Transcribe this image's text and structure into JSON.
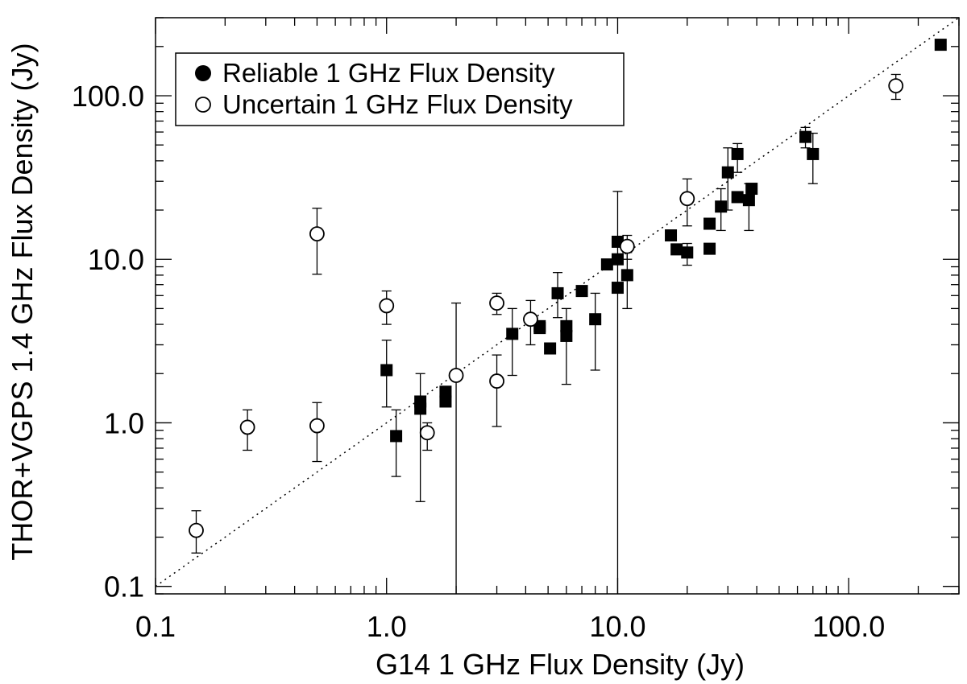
{
  "chart_data": {
    "type": "scatter",
    "xlabel": "G14 1 GHz Flux Density (Jy)",
    "ylabel": "THOR+VGPS 1.4 GHz Flux Density (Jy)",
    "x_scale": "log",
    "y_scale": "log",
    "xlim": [
      0.1,
      300
    ],
    "ylim": [
      0.09,
      300
    ],
    "x_ticks": [
      {
        "value": 0.1,
        "label": "0.1"
      },
      {
        "value": 1,
        "label": "1.0"
      },
      {
        "value": 10,
        "label": "10.0"
      },
      {
        "value": 100,
        "label": "100.0"
      }
    ],
    "y_ticks": [
      {
        "value": 0.1,
        "label": "0.1"
      },
      {
        "value": 1,
        "label": "1.0"
      },
      {
        "value": 10,
        "label": "10.0"
      },
      {
        "value": 100,
        "label": "100.0"
      }
    ],
    "reference_line": {
      "style": "dotted",
      "relation": "y = x"
    },
    "grid": false,
    "legend_position": "top-left",
    "series": [
      {
        "name": "Reliable 1 GHz Flux Density",
        "marker": "filled-square",
        "color": "#000000",
        "points": [
          {
            "x": 1.0,
            "y": 2.1,
            "lo": 1.25,
            "hi": 3.2
          },
          {
            "x": 1.1,
            "y": 0.83,
            "lo": 0.47,
            "hi": 1.2
          },
          {
            "x": 1.4,
            "y": 1.22,
            "lo": 0.33,
            "hi": 2.0
          },
          {
            "x": 1.4,
            "y": 1.35
          },
          {
            "x": 1.8,
            "y": 1.35
          },
          {
            "x": 1.8,
            "y": 1.55
          },
          {
            "x": 3.5,
            "y": 3.5,
            "lo": 1.95,
            "hi": 5.0
          },
          {
            "x": 4.6,
            "y": 3.8
          },
          {
            "x": 4.6,
            "y": 3.9
          },
          {
            "x": 5.1,
            "y": 2.85
          },
          {
            "x": 5.5,
            "y": 6.2,
            "lo": 4.4,
            "hi": 8.3
          },
          {
            "x": 6.0,
            "y": 3.4,
            "lo": 1.72,
            "hi": 5.0
          },
          {
            "x": 6.0,
            "y": 3.9
          },
          {
            "x": 7.0,
            "y": 6.4
          },
          {
            "x": 8.0,
            "y": 4.3,
            "lo": 2.1,
            "hi": 6.2
          },
          {
            "x": 9.0,
            "y": 9.3
          },
          {
            "x": 10.0,
            "y": 6.7,
            "lo": 0.05,
            "hi": 26
          },
          {
            "x": 10.0,
            "y": 10.0
          },
          {
            "x": 10.0,
            "y": 12.8
          },
          {
            "x": 11.0,
            "y": 8.0,
            "lo": 5.0,
            "hi": 11.0
          },
          {
            "x": 17.0,
            "y": 14.0
          },
          {
            "x": 18.0,
            "y": 11.5
          },
          {
            "x": 20.0,
            "y": 11.0,
            "lo": 9.2,
            "hi": 12.5
          },
          {
            "x": 25.0,
            "y": 11.6
          },
          {
            "x": 25.0,
            "y": 16.5
          },
          {
            "x": 28.0,
            "y": 21.0,
            "lo": 15.0,
            "hi": 27.0
          },
          {
            "x": 30.0,
            "y": 34.0,
            "lo": 20.0,
            "hi": 48.0
          },
          {
            "x": 33.0,
            "y": 24.0
          },
          {
            "x": 33.0,
            "y": 44.0,
            "lo": 34.0,
            "hi": 51.0
          },
          {
            "x": 37.0,
            "y": 23.0,
            "lo": 15.0,
            "hi": 29.0
          },
          {
            "x": 38.0,
            "y": 27.0
          },
          {
            "x": 65.0,
            "y": 56.0,
            "lo": 48.0,
            "hi": 64.0
          },
          {
            "x": 70.0,
            "y": 44.0,
            "lo": 29.0,
            "hi": 59.0
          },
          {
            "x": 250.0,
            "y": 205.0
          }
        ]
      },
      {
        "name": "Uncertain 1 GHz Flux Density",
        "marker": "open-circle",
        "color": "#000000",
        "points": [
          {
            "x": 0.15,
            "y": 0.22,
            "lo": 0.16,
            "hi": 0.29
          },
          {
            "x": 0.25,
            "y": 0.94,
            "lo": 0.68,
            "hi": 1.2
          },
          {
            "x": 0.5,
            "y": 14.3,
            "lo": 8.1,
            "hi": 20.5
          },
          {
            "x": 0.5,
            "y": 0.96,
            "lo": 0.58,
            "hi": 1.33
          },
          {
            "x": 1.0,
            "y": 5.2,
            "lo": 4.0,
            "hi": 6.4
          },
          {
            "x": 1.5,
            "y": 0.87,
            "lo": 0.68,
            "hi": 1.0
          },
          {
            "x": 2.0,
            "y": 1.95,
            "lo": 0.05,
            "hi": 5.4
          },
          {
            "x": 3.0,
            "y": 5.4,
            "lo": 4.6,
            "hi": 6.2
          },
          {
            "x": 3.0,
            "y": 1.8,
            "lo": 0.95,
            "hi": 2.6
          },
          {
            "x": 4.2,
            "y": 4.3,
            "lo": 3.0,
            "hi": 5.6
          },
          {
            "x": 11.0,
            "y": 12.0,
            "lo": 10.0,
            "hi": 14.0
          },
          {
            "x": 20.0,
            "y": 23.5,
            "lo": 16.0,
            "hi": 31.0
          },
          {
            "x": 160.0,
            "y": 115.0,
            "lo": 95.0,
            "hi": 135.0
          }
        ]
      }
    ]
  }
}
